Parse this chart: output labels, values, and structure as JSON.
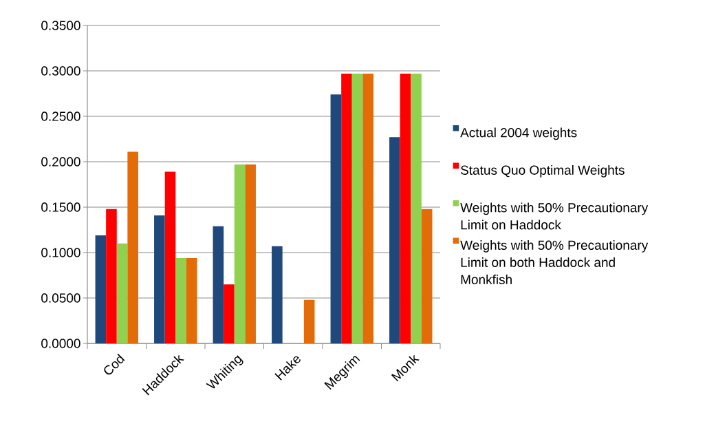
{
  "chart_data": {
    "type": "bar",
    "categories": [
      "Cod",
      "Haddock",
      "Whiting",
      "Hake",
      "Megrim",
      "Monk"
    ],
    "series": [
      {
        "name": "Actual 2004 weights",
        "color": "#1f497d",
        "values": [
          0.119,
          0.141,
          0.129,
          0.107,
          0.274,
          0.227
        ]
      },
      {
        "name": "Status Quo Optimal Weights",
        "color": "#ff0000",
        "values": [
          0.148,
          0.189,
          0.065,
          0,
          0.297,
          0.297
        ]
      },
      {
        "name": "Weights with 50% Precautionary Limit on Haddock",
        "color": "#92d050",
        "values": [
          0.11,
          0.094,
          0.197,
          0,
          0.297,
          0.297
        ]
      },
      {
        "name": "Weights with 50% Precautionary Limit on both Haddock and Monkfish",
        "color": "#e36c09",
        "values": [
          0.211,
          0.094,
          0.197,
          0.048,
          0.297,
          0.148
        ]
      }
    ],
    "ylim": [
      0,
      0.35
    ],
    "yticks": [
      {
        "value": 0,
        "label": "0.0000"
      },
      {
        "value": 0.05,
        "label": "0.0500"
      },
      {
        "value": 0.1,
        "label": "0.1000"
      },
      {
        "value": 0.15,
        "label": "0.1500"
      },
      {
        "value": 0.2,
        "label": "0.2000"
      },
      {
        "value": 0.25,
        "label": "0.2500"
      },
      {
        "value": 0.3,
        "label": "0.3000"
      },
      {
        "value": 0.35,
        "label": "0.3500"
      }
    ],
    "grid": "y",
    "legend": "right"
  }
}
